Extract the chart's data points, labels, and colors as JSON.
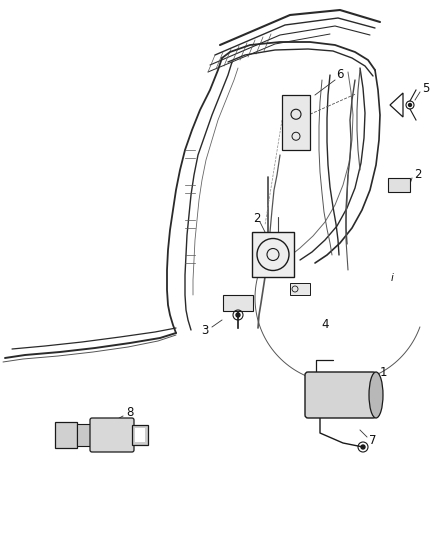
{
  "background_color": "#ffffff",
  "fig_width": 4.38,
  "fig_height": 5.33,
  "dpi": 100,
  "line_color": "#1a1a1a",
  "label_fontsize": 8.5,
  "label_color": "#111111"
}
